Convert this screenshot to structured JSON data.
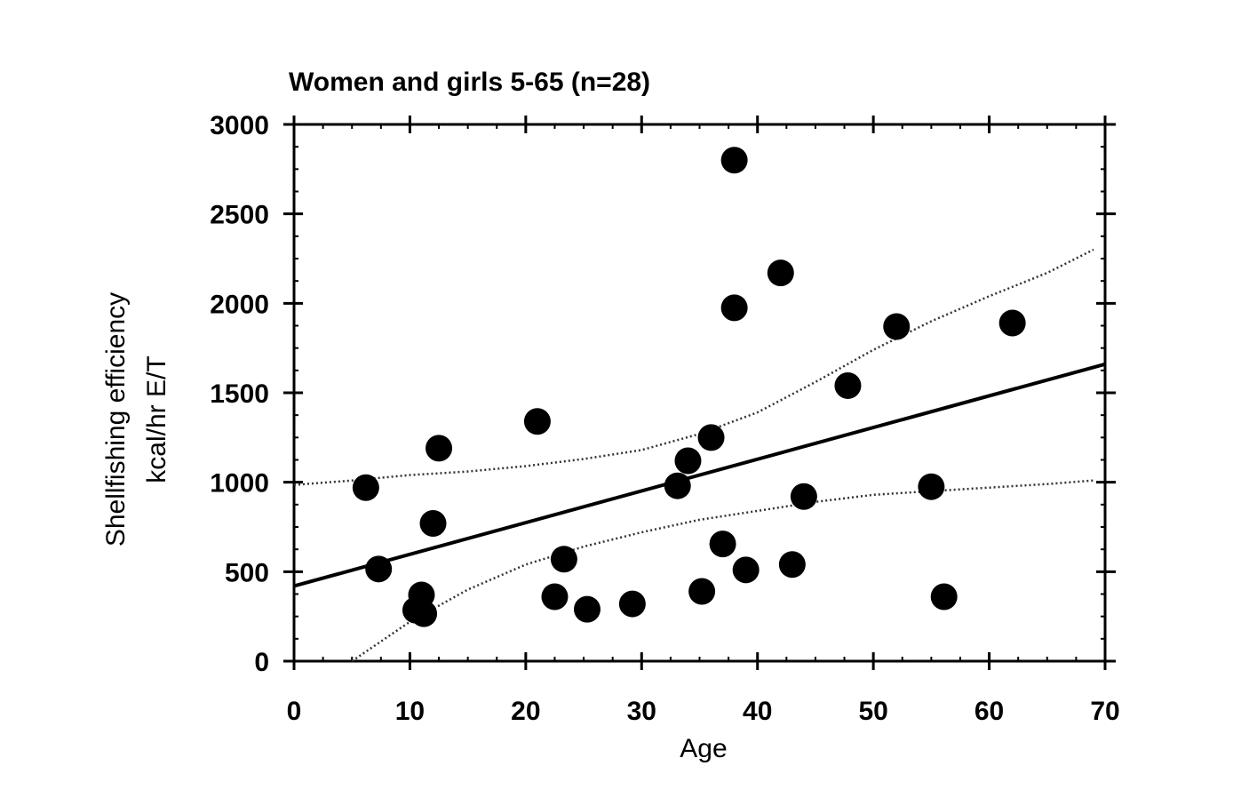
{
  "chart_data": {
    "type": "scatter",
    "title": "Women and girls 5-65 (n=28)",
    "xlabel": "Age",
    "ylabel_line1": "Shellfishing efficiency",
    "ylabel_line2": "kcal/hr E/T",
    "xlim": [
      0,
      70
    ],
    "ylim": [
      0,
      3000
    ],
    "xticks": [
      "0",
      "10",
      "20",
      "30",
      "40",
      "50",
      "60",
      "70"
    ],
    "yticks": [
      "0",
      "500",
      "1000",
      "1500",
      "2000",
      "2500",
      "3000"
    ],
    "grid": false,
    "points": [
      {
        "x": 6.2,
        "y": 970
      },
      {
        "x": 7.3,
        "y": 515
      },
      {
        "x": 10.5,
        "y": 285
      },
      {
        "x": 11.0,
        "y": 370
      },
      {
        "x": 11.2,
        "y": 265
      },
      {
        "x": 12.0,
        "y": 770
      },
      {
        "x": 12.5,
        "y": 1190
      },
      {
        "x": 21.0,
        "y": 1340
      },
      {
        "x": 22.5,
        "y": 360
      },
      {
        "x": 23.3,
        "y": 570
      },
      {
        "x": 25.3,
        "y": 290
      },
      {
        "x": 29.2,
        "y": 320
      },
      {
        "x": 33.1,
        "y": 980
      },
      {
        "x": 34.0,
        "y": 1120
      },
      {
        "x": 35.2,
        "y": 390
      },
      {
        "x": 36.0,
        "y": 1250
      },
      {
        "x": 37.0,
        "y": 655
      },
      {
        "x": 38.0,
        "y": 2800
      },
      {
        "x": 38.0,
        "y": 1975
      },
      {
        "x": 39.0,
        "y": 510
      },
      {
        "x": 42.0,
        "y": 2170
      },
      {
        "x": 43.0,
        "y": 540
      },
      {
        "x": 44.0,
        "y": 920
      },
      {
        "x": 47.8,
        "y": 1540
      },
      {
        "x": 52.0,
        "y": 1870
      },
      {
        "x": 55.0,
        "y": 975
      },
      {
        "x": 56.1,
        "y": 360
      },
      {
        "x": 62.0,
        "y": 1890
      }
    ],
    "regression_line": [
      [
        0,
        420
      ],
      [
        70,
        1660
      ]
    ],
    "confidence_upper": [
      [
        0,
        985
      ],
      [
        5,
        1010
      ],
      [
        10,
        1040
      ],
      [
        15,
        1060
      ],
      [
        20,
        1090
      ],
      [
        25,
        1130
      ],
      [
        30,
        1180
      ],
      [
        35,
        1270
      ],
      [
        40,
        1390
      ],
      [
        45,
        1560
      ],
      [
        50,
        1740
      ],
      [
        55,
        1900
      ],
      [
        60,
        2040
      ],
      [
        65,
        2170
      ],
      [
        69,
        2300
      ]
    ],
    "confidence_lower": [
      [
        5,
        0
      ],
      [
        10,
        220
      ],
      [
        15,
        400
      ],
      [
        20,
        540
      ],
      [
        25,
        640
      ],
      [
        30,
        720
      ],
      [
        35,
        790
      ],
      [
        40,
        840
      ],
      [
        45,
        890
      ],
      [
        50,
        930
      ],
      [
        55,
        950
      ],
      [
        60,
        970
      ],
      [
        65,
        990
      ],
      [
        69,
        1010
      ]
    ]
  }
}
